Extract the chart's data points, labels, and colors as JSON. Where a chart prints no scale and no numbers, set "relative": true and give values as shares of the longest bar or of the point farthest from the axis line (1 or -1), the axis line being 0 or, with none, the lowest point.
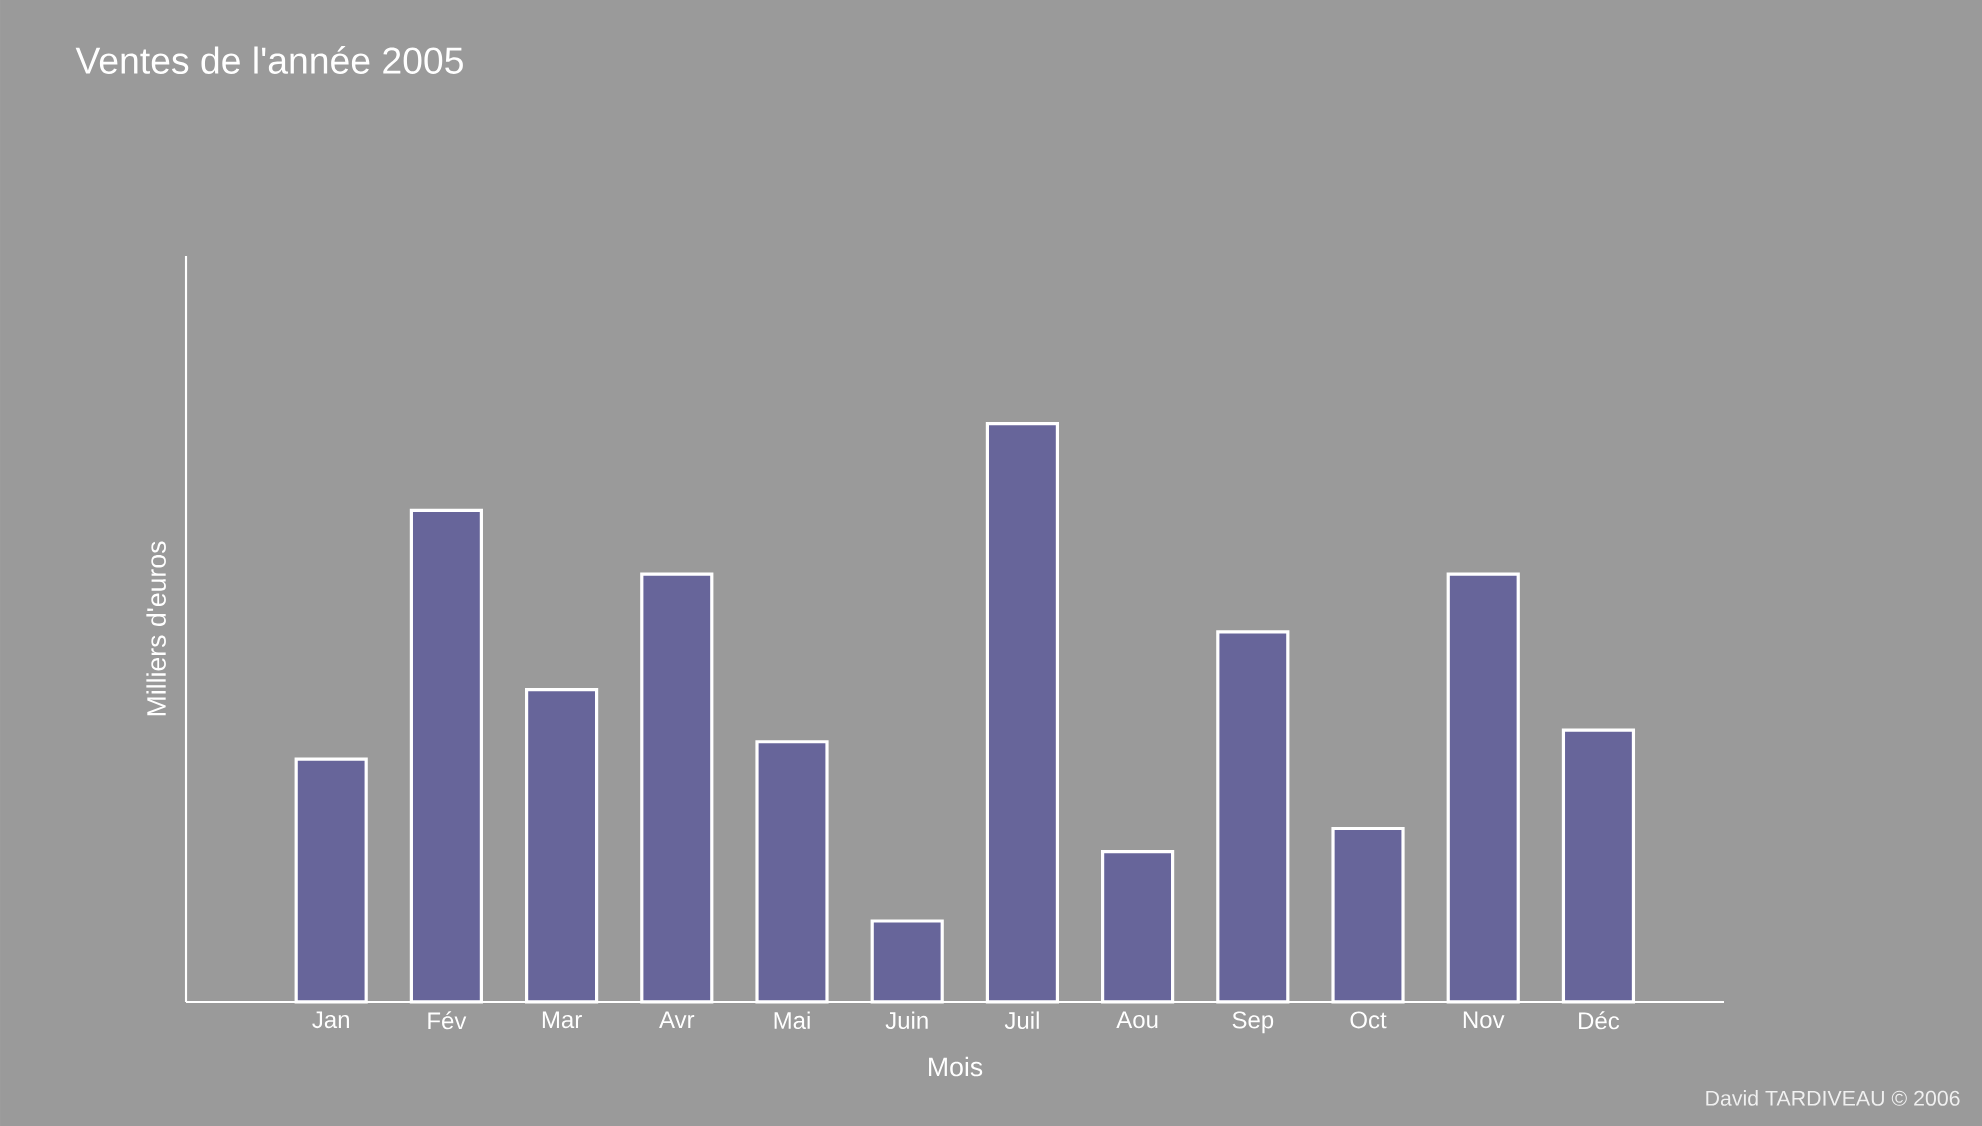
{
  "chart_data": {
    "type": "bar",
    "title": "Ventes de l'année 2005",
    "xlabel": "Mois",
    "ylabel": "Milliers d'euros",
    "categories": [
      "Jan",
      "Fév",
      "Mar",
      "Avr",
      "Mai",
      "Juin",
      "Juil",
      "Aou",
      "Sep",
      "Oct",
      "Nov",
      "Déc"
    ],
    "values": [
      0.42,
      0.85,
      0.54,
      0.74,
      0.45,
      0.14,
      1,
      0.26,
      0.64,
      0.3,
      0.74,
      0.47
    ],
    "color": "#67659a",
    "relative": true,
    "annotations": [
      "David TARDIVEAU © 2006"
    ]
  }
}
